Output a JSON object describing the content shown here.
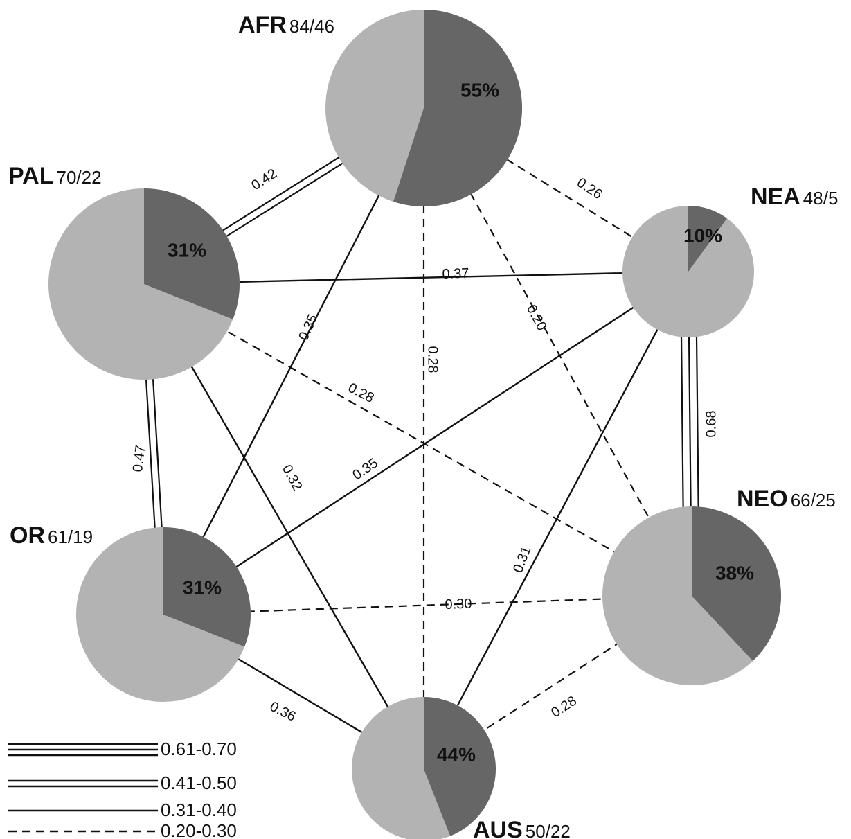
{
  "colors": {
    "pie_base": "#b3b3b3",
    "pie_share": "#666666",
    "line": "#111111"
  },
  "regions": [
    {
      "id": "AFR",
      "name": "AFR",
      "counts": "84/46",
      "percent": 55,
      "percent_label": "55%"
    },
    {
      "id": "PAL",
      "name": "PAL",
      "counts": "70/22",
      "percent": 31,
      "percent_label": "31%"
    },
    {
      "id": "NEA",
      "name": "NEA",
      "counts": "48/5",
      "percent": 10,
      "percent_label": "10%"
    },
    {
      "id": "NEO",
      "name": "NEO",
      "counts": "66/25",
      "percent": 38,
      "percent_label": "38%"
    },
    {
      "id": "OR",
      "name": "OR",
      "counts": "61/19",
      "percent": 31,
      "percent_label": "31%"
    },
    {
      "id": "AUS",
      "name": "AUS",
      "counts": "50/22",
      "percent": 44,
      "percent_label": "44%"
    }
  ],
  "edges": [
    {
      "from": "AFR",
      "to": "PAL",
      "value": "0.42",
      "style": "double"
    },
    {
      "from": "AFR",
      "to": "NEA",
      "value": "0.26",
      "style": "dashed"
    },
    {
      "from": "AFR",
      "to": "OR",
      "value": "0.35",
      "style": "single"
    },
    {
      "from": "AFR",
      "to": "AUS",
      "value": "0.28",
      "style": "dashed"
    },
    {
      "from": "AFR",
      "to": "NEO",
      "value": "0.20",
      "style": "dashed"
    },
    {
      "from": "PAL",
      "to": "NEA",
      "value": "0.37",
      "style": "single"
    },
    {
      "from": "PAL",
      "to": "NEO",
      "value": "0.28",
      "style": "dashed"
    },
    {
      "from": "PAL",
      "to": "OR",
      "value": "0.47",
      "style": "double"
    },
    {
      "from": "PAL",
      "to": "AUS",
      "value": "0.32",
      "style": "single"
    },
    {
      "from": "NEA",
      "to": "NEO",
      "value": "0.68",
      "style": "triple"
    },
    {
      "from": "NEA",
      "to": "OR",
      "value": "0.35",
      "style": "single"
    },
    {
      "from": "NEA",
      "to": "AUS",
      "value": "0.31",
      "style": "single"
    },
    {
      "from": "OR",
      "to": "NEO",
      "value": "0.30",
      "style": "dashed"
    },
    {
      "from": "OR",
      "to": "AUS",
      "value": "0.36",
      "style": "single"
    },
    {
      "from": "NEO",
      "to": "AUS",
      "value": "0.28",
      "style": "dashed"
    }
  ],
  "legend": [
    {
      "style": "triple",
      "label": "0.61-0.70"
    },
    {
      "style": "double",
      "label": "0.41-0.50"
    },
    {
      "style": "single",
      "label": "0.31-0.40"
    },
    {
      "style": "dashed",
      "label": "0.20-0.30"
    }
  ]
}
